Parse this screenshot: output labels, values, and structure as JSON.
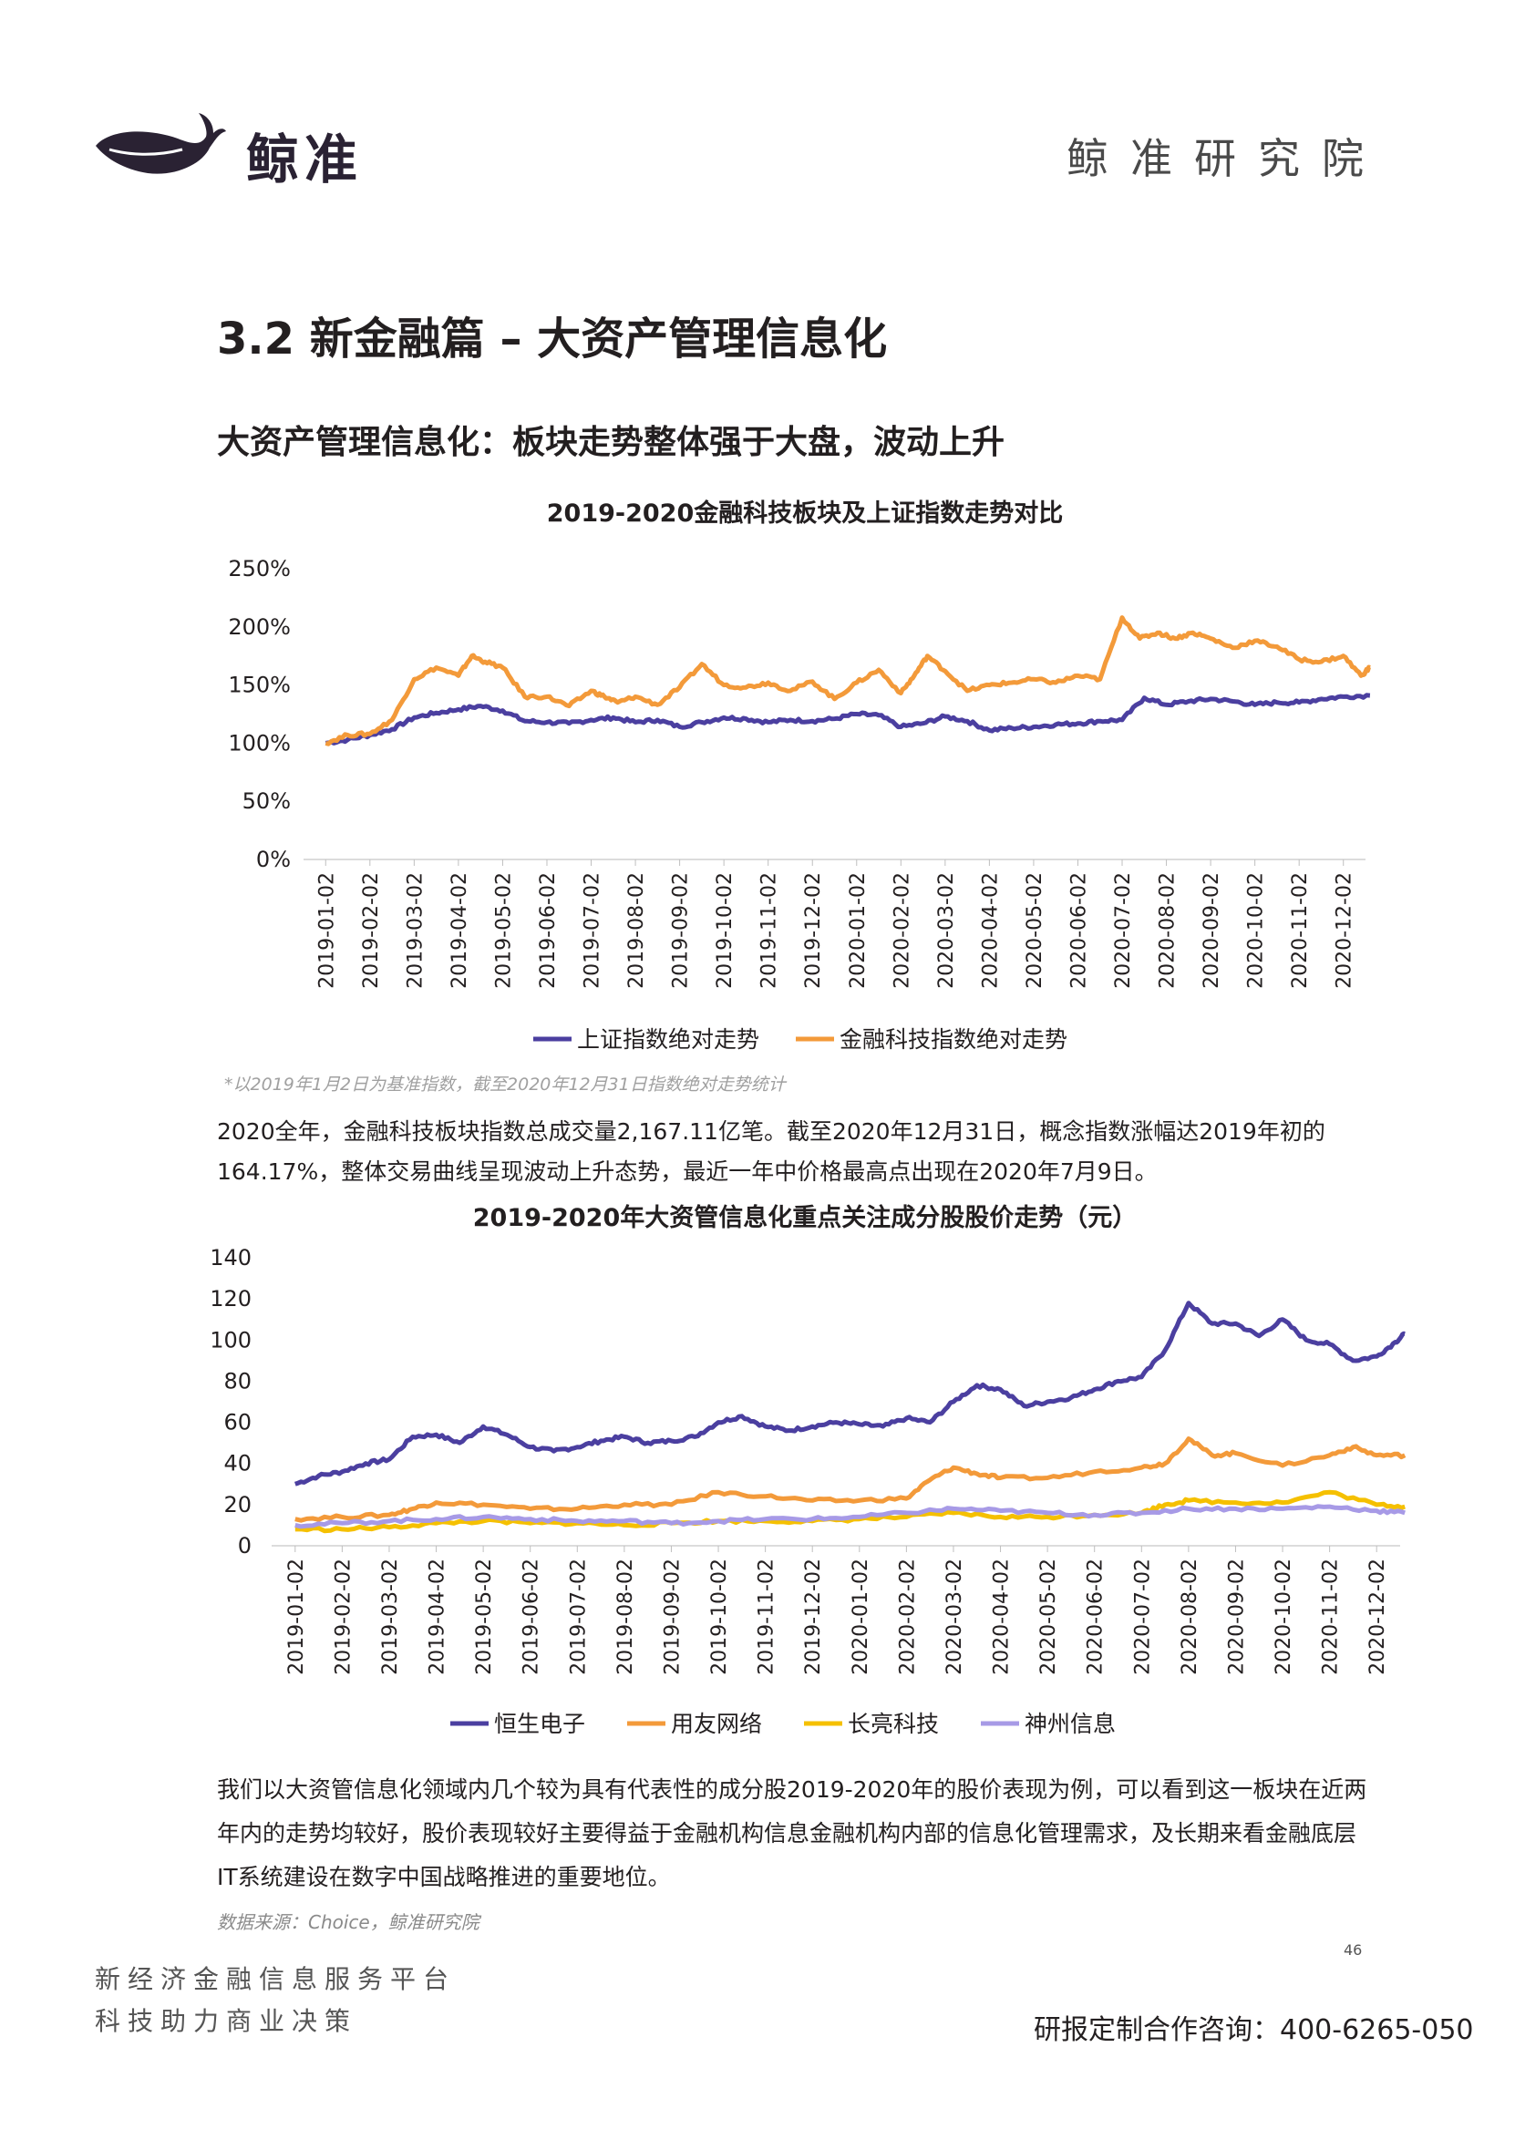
{
  "header": {
    "logo_text": "鲸准",
    "right_text": "鲸准研究院"
  },
  "section_title": "3.2 新金融篇 – 大资产管理信息化",
  "slide_title": "大资产管理信息化：板块走势整体强于大盘，波动上升",
  "chart1_note": "*以2019年1月2日为基准指数，截至2020年12月31日指数绝对走势统计",
  "paragraph1": "2020全年，金融科技板块指数总成交量2,167.11亿笔。截至2020年12月31日，概念指数涨幅达2019年初的164.17%，整体交易曲线呈现波动上升态势，最近一年中价格最高点出现在2020年7月9日。",
  "paragraph2": "我们以大资管信息化领域内几个较为具有代表性的成分股2019-2020年的股价表现为例，可以看到这一板块在近两年内的走势均较好，股价表现较好主要得益于金融机构信息金融机构内部的信息化管理需求，及长期来看金融底层IT系统建设在数字中国战略推进的重要地位。",
  "source": "数据来源：Choice，鲸准研究院",
  "page_number": "46",
  "footer": {
    "line1": "新经济金融信息服务平台",
    "line2": "科技助力商业决策",
    "contact": "研报定制合作咨询：400-6265-050"
  },
  "chart_data": [
    {
      "type": "line",
      "title": "2019-2020金融科技板块及上证指数走势对比",
      "x_labels": [
        "2019-01-02",
        "2019-02-02",
        "2019-03-02",
        "2019-04-02",
        "2019-05-02",
        "2019-06-02",
        "2019-07-02",
        "2019-08-02",
        "2019-09-02",
        "2019-10-02",
        "2019-11-02",
        "2019-12-02",
        "2020-01-02",
        "2020-02-02",
        "2020-03-02",
        "2020-04-02",
        "2020-05-02",
        "2020-06-02",
        "2020-07-02",
        "2020-08-02",
        "2020-09-02",
        "2020-10-02",
        "2020-11-02",
        "2020-12-02"
      ],
      "y_ticks": [
        "0%",
        "50%",
        "100%",
        "150%",
        "200%",
        "250%"
      ],
      "ylim": [
        0,
        250
      ],
      "legend_position": "bottom",
      "series": [
        {
          "name": "上证指数绝对走势",
          "color": "#4b3fa0",
          "x": [
            0,
            0.5,
            1,
            1.5,
            2,
            2.5,
            3,
            3.5,
            4,
            4.5,
            5,
            5.5,
            6,
            6.5,
            7,
            7.5,
            8,
            8.5,
            9,
            9.5,
            10,
            10.5,
            11,
            11.5,
            12,
            12.5,
            13,
            13.5,
            14,
            14.5,
            15,
            15.5,
            16,
            16.5,
            17,
            17.5,
            18,
            18.5,
            19,
            19.5,
            20,
            20.5,
            21,
            21.5,
            22,
            22.5,
            23,
            23.6
          ],
          "y": [
            100,
            103,
            107,
            112,
            122,
            126,
            129,
            132,
            128,
            119,
            118,
            117,
            120,
            122,
            118,
            120,
            114,
            118,
            122,
            121,
            118,
            120,
            119,
            121,
            125,
            124,
            114,
            117,
            123,
            119,
            111,
            113,
            114,
            116,
            117,
            119,
            120,
            139,
            133,
            136,
            138,
            136,
            133,
            135,
            135,
            138,
            140,
            141
          ]
        },
        {
          "name": "金融科技指数绝对走势",
          "color": "#f39a3a",
          "x": [
            0,
            0.5,
            1,
            1.5,
            2,
            2.5,
            3,
            3.3,
            3.6,
            4,
            4.5,
            5,
            5.5,
            6,
            6.3,
            6.6,
            7,
            7.5,
            8,
            8.5,
            9,
            9.5,
            10,
            10.5,
            11,
            11.5,
            12,
            12.5,
            13,
            13.3,
            13.6,
            14,
            14.5,
            15,
            15.5,
            16,
            16.5,
            17,
            17.5,
            18,
            18.4,
            18.8,
            19.2,
            19.6,
            20,
            20.5,
            21,
            21.5,
            22,
            22.5,
            23,
            23.4,
            23.6
          ],
          "y": [
            100,
            107,
            108,
            120,
            155,
            165,
            158,
            175,
            170,
            165,
            140,
            140,
            132,
            145,
            140,
            135,
            140,
            133,
            148,
            168,
            150,
            148,
            152,
            145,
            153,
            138,
            152,
            163,
            143,
            158,
            175,
            162,
            145,
            150,
            152,
            155,
            152,
            158,
            155,
            208,
            190,
            195,
            190,
            195,
            190,
            182,
            188,
            183,
            172,
            170,
            175,
            158,
            165
          ]
        }
      ]
    },
    {
      "type": "line",
      "title": "2019-2020年大资管信息化重点关注成分股股价走势（元）",
      "x_labels": [
        "2019-01-02",
        "2019-02-02",
        "2019-03-02",
        "2019-04-02",
        "2019-05-02",
        "2019-06-02",
        "2019-07-02",
        "2019-08-02",
        "2019-09-02",
        "2019-10-02",
        "2019-11-02",
        "2019-12-02",
        "2020-01-02",
        "2020-02-02",
        "2020-03-02",
        "2020-04-02",
        "2020-05-02",
        "2020-06-02",
        "2020-07-02",
        "2020-08-02",
        "2020-09-02",
        "2020-10-02",
        "2020-11-02",
        "2020-12-02"
      ],
      "y_ticks": [
        "0",
        "20",
        "40",
        "60",
        "80",
        "100",
        "120",
        "140"
      ],
      "ylim": [
        0,
        140
      ],
      "legend_position": "bottom",
      "series": [
        {
          "name": "恒生电子",
          "color": "#4b3fa0",
          "x": [
            0,
            0.5,
            1,
            1.5,
            2,
            2.5,
            3,
            3.5,
            4,
            4.5,
            5,
            5.5,
            6,
            6.5,
            7,
            7.5,
            8,
            8.5,
            9,
            9.5,
            10,
            10.5,
            11,
            11.5,
            12,
            12.5,
            13,
            13.5,
            14,
            14.5,
            15,
            15.5,
            16,
            16.5,
            17,
            17.5,
            18,
            18.5,
            19,
            19.5,
            20,
            20.5,
            21,
            21.5,
            22,
            22.5,
            23,
            23.4,
            23.6
          ],
          "y": [
            30,
            34,
            36,
            40,
            42,
            53,
            54,
            50,
            58,
            54,
            48,
            46,
            48,
            51,
            53,
            50,
            51,
            53,
            60,
            63,
            58,
            56,
            58,
            60,
            59,
            58,
            62,
            60,
            70,
            78,
            76,
            68,
            70,
            72,
            76,
            80,
            82,
            95,
            118,
            108,
            108,
            102,
            110,
            100,
            98,
            90,
            92,
            99,
            103
          ]
        },
        {
          "name": "用友网络",
          "color": "#f39a3a",
          "x": [
            0,
            1,
            2,
            2.5,
            3,
            4,
            5,
            6,
            7,
            8,
            9,
            10,
            11,
            12,
            13,
            13.5,
            14,
            14.5,
            15,
            16,
            17,
            18,
            18.5,
            19,
            19.5,
            20,
            21,
            22,
            22.5,
            23,
            23.6
          ],
          "y": [
            13,
            14,
            15,
            18,
            21,
            20,
            18,
            18,
            20,
            20,
            26,
            24,
            22,
            22,
            23,
            32,
            38,
            35,
            33,
            33,
            36,
            38,
            40,
            52,
            44,
            45,
            39,
            44,
            48,
            44,
            44
          ]
        },
        {
          "name": "长亮科技",
          "color": "#f5c000",
          "x": [
            0,
            1,
            2,
            3,
            4,
            5,
            6,
            7,
            8,
            9,
            10,
            11,
            12,
            13,
            14,
            15,
            16,
            17,
            18,
            18.5,
            19,
            20,
            21,
            22,
            23,
            23.6
          ],
          "y": [
            8,
            8,
            9,
            11,
            12,
            11,
            11,
            10,
            11,
            12,
            12,
            12,
            13,
            14,
            16,
            14,
            14,
            15,
            16,
            20,
            22,
            21,
            21,
            26,
            20,
            19
          ]
        },
        {
          "name": "神州信息",
          "color": "#a79ae6",
          "x": [
            0,
            1,
            2,
            3,
            4,
            5,
            6,
            7,
            8,
            9,
            10,
            11,
            12,
            13,
            14,
            15,
            16,
            17,
            18,
            19,
            20,
            21,
            22,
            23,
            23.6
          ],
          "y": [
            10,
            11,
            12,
            13,
            14,
            13,
            12,
            12,
            11,
            12,
            13,
            13,
            14,
            16,
            18,
            17,
            16,
            15,
            16,
            18,
            18,
            18,
            19,
            17,
            16
          ]
        }
      ]
    }
  ]
}
